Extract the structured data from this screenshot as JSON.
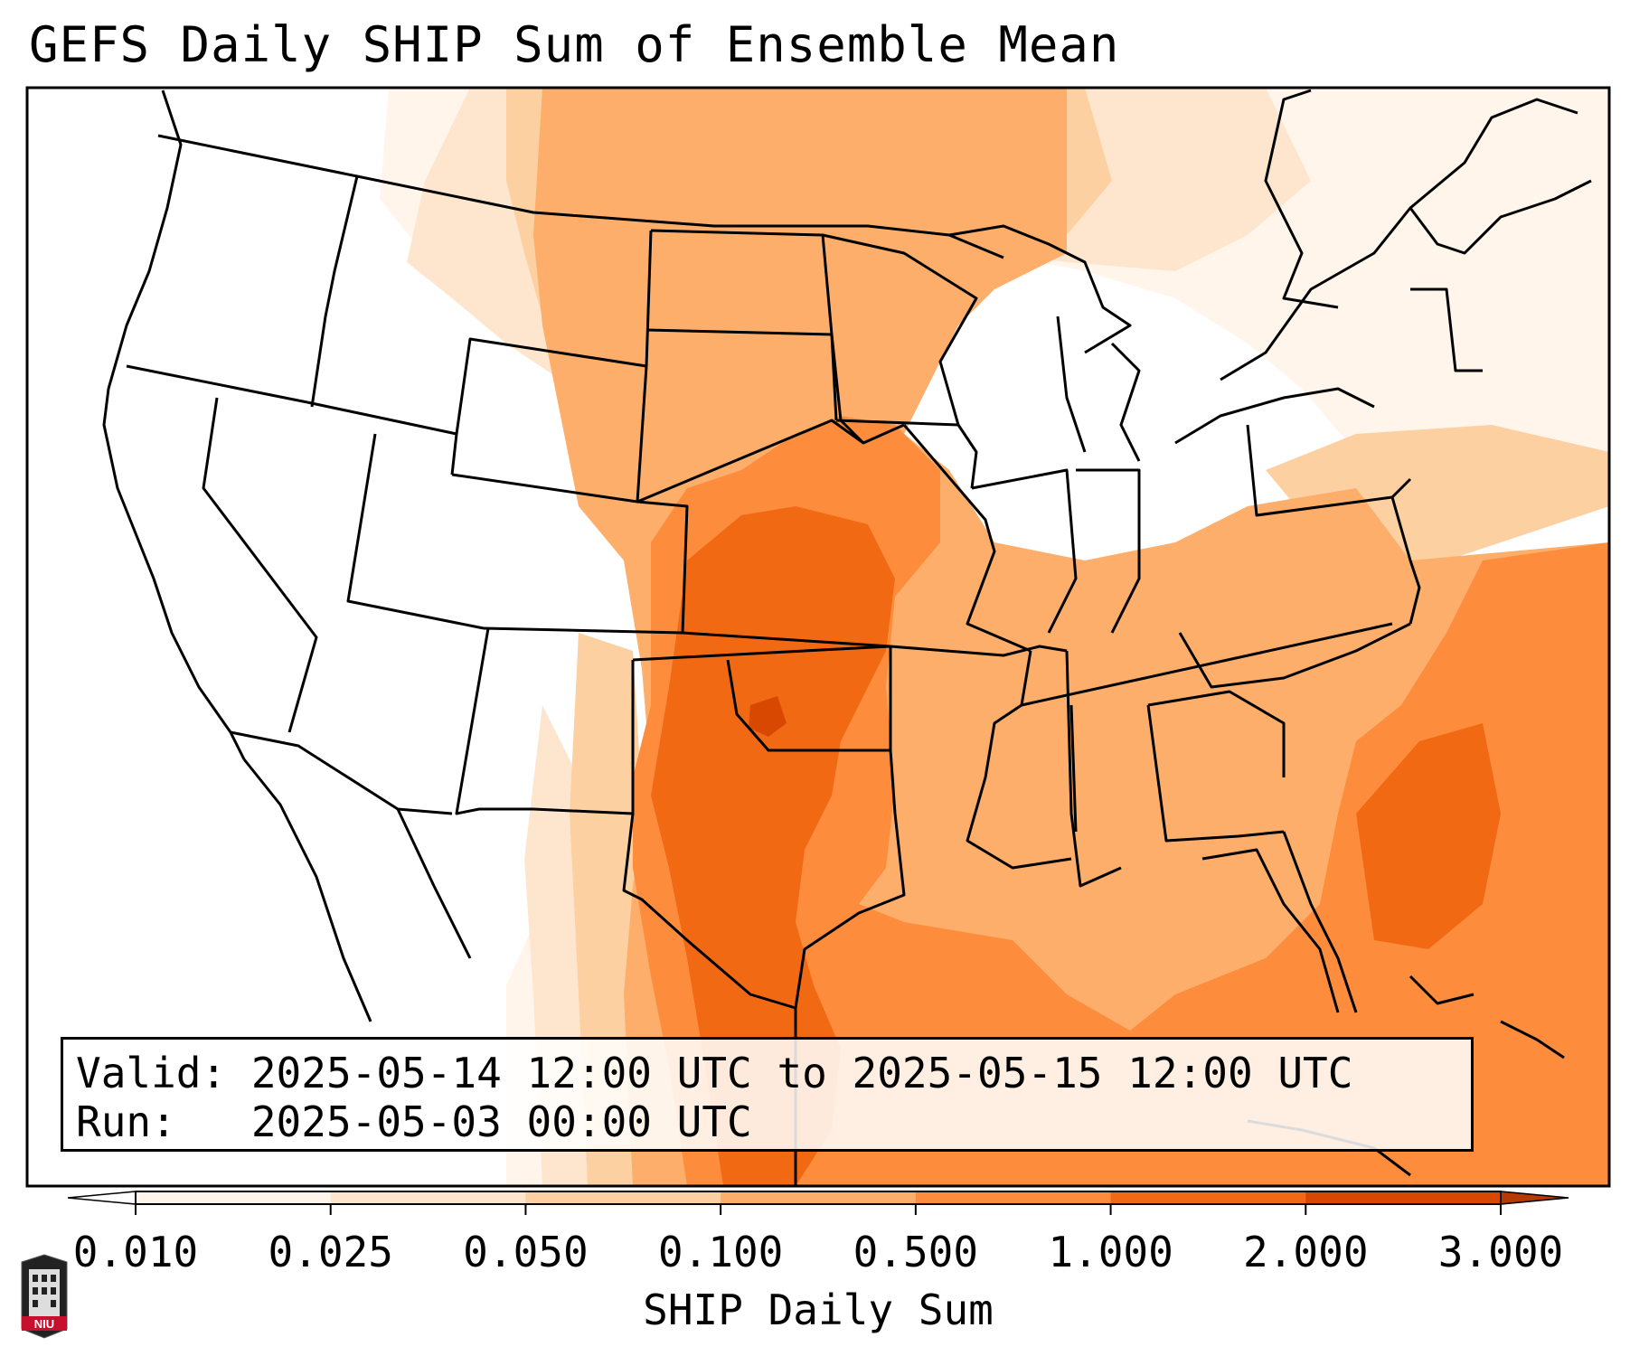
{
  "title": "GEFS Daily SHIP Sum of Ensemble Mean",
  "info": {
    "valid_line": "Valid: 2025-05-14 12:00 UTC to 2025-05-15 12:00 UTC",
    "run_line": "Run:   2025-05-03 00:00 UTC"
  },
  "colorbar": {
    "label": "SHIP Daily Sum",
    "ticks": [
      "0.010",
      "0.025",
      "0.050",
      "0.100",
      "0.500",
      "1.000",
      "2.000",
      "3.000"
    ],
    "colors": [
      "#fff5eb",
      "#fee6ce",
      "#fdd0a2",
      "#fdae6b",
      "#fd8d3c",
      "#f16913",
      "#d94801"
    ],
    "over_color": "#b53a04",
    "under_color": "#ffffff"
  },
  "map": {
    "projection": "lambert-conformal",
    "region": "CONUS",
    "boundary_color": "#000000"
  },
  "logo": {
    "text": "NIU",
    "color": "#c8102e"
  }
}
